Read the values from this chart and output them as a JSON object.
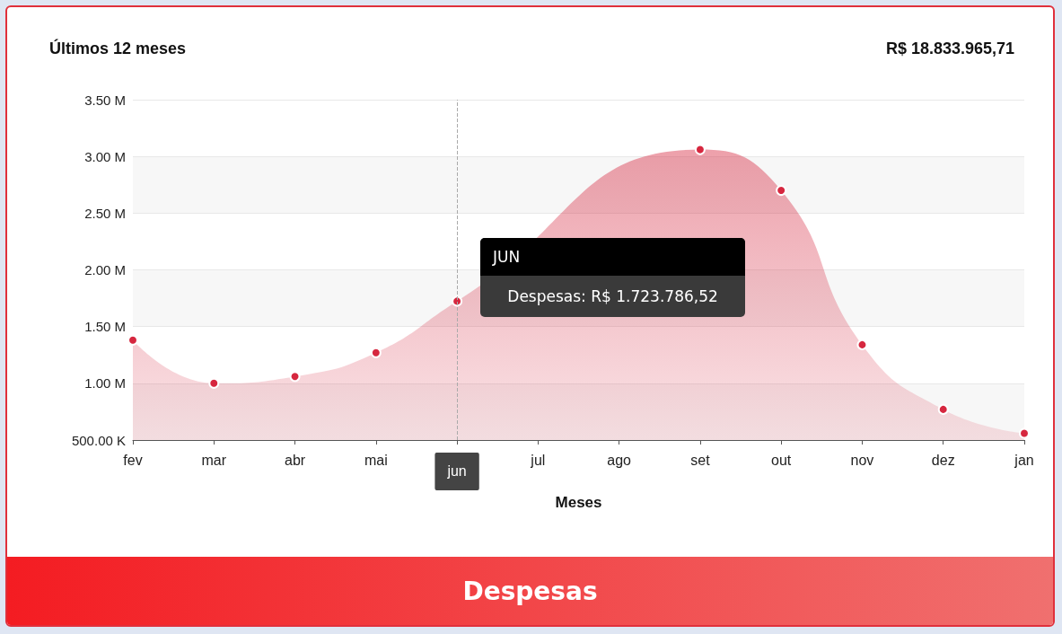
{
  "chart_data": {
    "type": "area",
    "title": "Últimos 12 meses",
    "xlabel": "Meses",
    "categories": [
      "fev",
      "mar",
      "abr",
      "mai",
      "jun",
      "jul",
      "ago",
      "set",
      "out",
      "nov",
      "dez",
      "jan"
    ],
    "series": [
      {
        "color": "#d6273f",
        "values": [
          1380000,
          1000000,
          1060000,
          1270000,
          1723786.52,
          null,
          null,
          3060000,
          2700000,
          1340000,
          770000,
          560000
        ]
      }
    ],
    "ylim": [
      500000,
      3500000
    ],
    "yticks": [
      {
        "value": 500000,
        "label": "500.00 K"
      },
      {
        "value": 1000000,
        "label": "1.00 M"
      },
      {
        "value": 1500000,
        "label": "1.50 M"
      },
      {
        "value": 2000000,
        "label": "2.00 M"
      },
      {
        "value": 2500000,
        "label": "2.50 M"
      },
      {
        "value": 3000000,
        "label": "3.00 M"
      },
      {
        "value": 3500000,
        "label": "3.50 M"
      }
    ],
    "grid": "y",
    "marker": "circle",
    "ref_lines": [
      {
        "axis": "x",
        "value": "jun",
        "line_style": "dashed",
        "color": "#aaaaaa"
      }
    ],
    "annotations": [
      "R$ 18.833.965,71",
      "JUN",
      "Despesas: R$ 1.723.786,52",
      "Despesas"
    ]
  }
}
